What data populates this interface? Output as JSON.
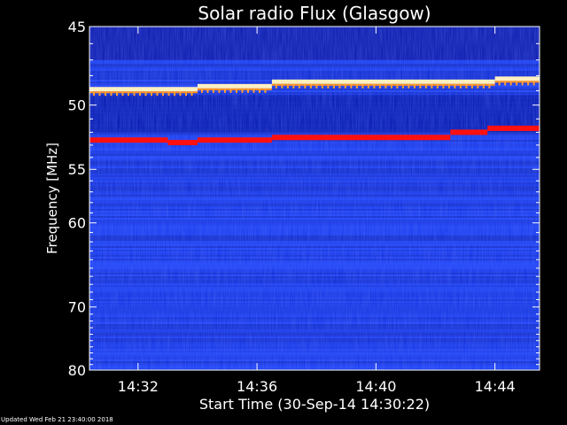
{
  "chart_data": {
    "type": "heatmap",
    "title": "Solar radio Flux (Glasgow)",
    "xlabel": "Start Time (30-Sep-14 14:30:22)",
    "ylabel": "Frequency [MHz]",
    "x_range": [
      "14:30:22",
      "14:45:30"
    ],
    "x_ticks": [
      "14:32",
      "14:36",
      "14:40",
      "14:44"
    ],
    "y_range": [
      45,
      80
    ],
    "y_ticks": [
      45,
      50,
      55,
      60,
      70,
      80
    ],
    "y_scale": "reciprocal",
    "features": [
      {
        "kind": "bright-band",
        "color": "#fff0c0",
        "segments": [
          {
            "start": "14:30:22",
            "end": "14:34:00",
            "mhz": 48.9
          },
          {
            "start": "14:34:00",
            "end": "14:36:30",
            "mhz": 48.7
          },
          {
            "start": "14:36:30",
            "end": "14:44:00",
            "mhz": 48.4
          },
          {
            "start": "14:44:00",
            "end": "14:45:30",
            "mhz": 48.2
          }
        ]
      },
      {
        "kind": "red-band",
        "color": "#ff1010",
        "segments": [
          {
            "start": "14:30:22",
            "end": "14:33:00",
            "mhz": 52.6
          },
          {
            "start": "14:33:00",
            "end": "14:34:00",
            "mhz": 52.8
          },
          {
            "start": "14:34:00",
            "end": "14:36:30",
            "mhz": 52.6
          },
          {
            "start": "14:36:30",
            "end": "14:42:30",
            "mhz": 52.4
          },
          {
            "start": "14:42:30",
            "end": "14:43:45",
            "mhz": 52.0
          },
          {
            "start": "14:43:45",
            "end": "14:45:30",
            "mhz": 51.7
          }
        ]
      }
    ],
    "colors": {
      "background": "#000000",
      "low": "#0000a8",
      "mid": "#1a3cf0",
      "high": "#ff2020",
      "peak": "#fff0c0"
    }
  },
  "footer": {
    "updated": "Updated Wed Feb 21 23:40:00 2018"
  }
}
